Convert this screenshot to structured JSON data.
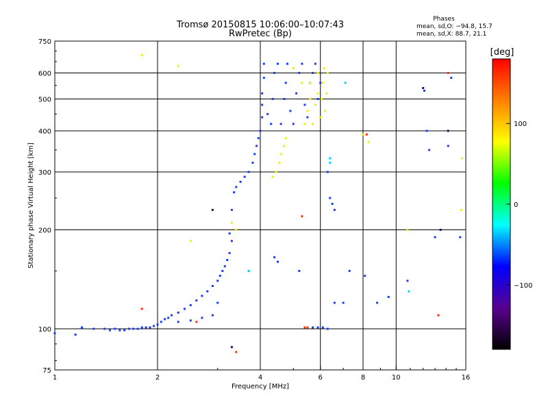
{
  "chart_data": {
    "type": "scatter",
    "title": "Tromsø 20150815 10:06:00–10:07:43",
    "subtitle": "RwPretec (Bp)",
    "xlabel": "Frequency [MHz]",
    "ylabel": "Stationary phase Virtual Height [km]",
    "x_scale": "log",
    "y_scale": "log",
    "xlim": [
      1,
      16
    ],
    "ylim": [
      75,
      750
    ],
    "x_ticks": [
      1,
      2,
      4,
      6,
      8,
      10,
      16
    ],
    "x_tick_labels": [
      "1",
      "2",
      "4",
      "6",
      "8",
      "10",
      "16"
    ],
    "x_grid": [
      1,
      2,
      4,
      6,
      8,
      10,
      16
    ],
    "y_ticks": [
      75,
      100,
      200,
      300,
      400,
      500,
      600,
      750
    ],
    "y_tick_labels": [
      "75",
      "100",
      "200",
      "300",
      "400",
      "500",
      "600",
      "750"
    ],
    "y_grid": [
      100,
      200,
      300,
      400,
      500,
      600
    ],
    "grid": true,
    "phase_stats": {
      "heading": "Phases",
      "line1": "mean, sd,O: −94.8, 15.7",
      "line2": "mean, sd,X:  88.7, 21.1"
    },
    "colorbar": {
      "label": "[deg]",
      "range": [
        -180,
        180
      ],
      "ticks": [
        100,
        0,
        -100
      ],
      "tick_labels": [
        "100",
        "0",
        "−100"
      ],
      "colormap": "rainbow",
      "colors": [
        "#000000",
        "#5a0090",
        "#0000ff",
        "#00ffff",
        "#00ff00",
        "#ffff00",
        "#ff8000",
        "#ff0000"
      ]
    },
    "series": [
      {
        "mode": "O",
        "phase_deg": -95,
        "color": "#1a3cff",
        "points": [
          [
            1.0,
            97
          ],
          [
            1.15,
            96
          ],
          [
            1.2,
            101
          ],
          [
            1.3,
            100
          ],
          [
            1.4,
            100
          ],
          [
            1.45,
            99
          ],
          [
            1.5,
            100
          ],
          [
            1.55,
            99
          ],
          [
            1.6,
            99
          ],
          [
            1.65,
            100
          ],
          [
            1.7,
            100
          ],
          [
            1.75,
            100
          ],
          [
            1.8,
            101
          ],
          [
            1.85,
            101
          ],
          [
            1.9,
            101
          ],
          [
            1.95,
            102
          ],
          [
            2.0,
            103
          ],
          [
            2.05,
            105
          ],
          [
            2.1,
            107
          ],
          [
            2.15,
            108
          ],
          [
            2.2,
            110
          ],
          [
            2.3,
            112
          ],
          [
            2.4,
            115
          ],
          [
            2.5,
            118
          ],
          [
            2.6,
            122
          ],
          [
            2.7,
            126
          ],
          [
            2.8,
            130
          ],
          [
            2.9,
            135
          ],
          [
            3.0,
            140
          ],
          [
            3.05,
            145
          ],
          [
            3.1,
            150
          ],
          [
            3.15,
            155
          ],
          [
            3.2,
            162
          ],
          [
            3.25,
            170
          ],
          [
            3.3,
            185
          ],
          [
            3.25,
            195
          ],
          [
            2.3,
            105
          ],
          [
            2.5,
            106
          ],
          [
            2.7,
            108
          ],
          [
            2.9,
            110
          ],
          [
            3.0,
            120
          ],
          [
            3.3,
            230
          ],
          [
            3.35,
            260
          ],
          [
            3.4,
            270
          ],
          [
            3.5,
            280
          ],
          [
            3.6,
            290
          ],
          [
            3.7,
            300
          ],
          [
            3.8,
            320
          ],
          [
            3.85,
            340
          ],
          [
            3.9,
            360
          ],
          [
            3.95,
            380
          ],
          [
            4.0,
            400
          ],
          [
            4.05,
            440
          ],
          [
            4.05,
            480
          ],
          [
            4.05,
            520
          ],
          [
            4.1,
            580
          ],
          [
            4.1,
            640
          ],
          [
            4.2,
            450
          ],
          [
            4.3,
            420
          ],
          [
            4.35,
            500
          ],
          [
            4.4,
            600
          ],
          [
            4.5,
            640
          ],
          [
            4.6,
            420
          ],
          [
            4.7,
            500
          ],
          [
            4.75,
            560
          ],
          [
            4.8,
            640
          ],
          [
            4.9,
            460
          ],
          [
            5.0,
            420
          ],
          [
            5.1,
            520
          ],
          [
            5.2,
            600
          ],
          [
            5.3,
            640
          ],
          [
            5.4,
            480
          ],
          [
            5.5,
            440
          ],
          [
            5.6,
            560
          ],
          [
            5.7,
            600
          ],
          [
            5.8,
            640
          ],
          [
            5.9,
            500
          ],
          [
            6.0,
            560
          ],
          [
            4.4,
            165
          ],
          [
            4.5,
            160
          ],
          [
            5.2,
            150
          ],
          [
            5.7,
            101
          ],
          [
            5.9,
            101
          ],
          [
            6.1,
            101
          ],
          [
            6.3,
            100
          ],
          [
            6.3,
            300
          ],
          [
            6.4,
            250
          ],
          [
            6.5,
            240
          ],
          [
            6.6,
            230
          ],
          [
            6.6,
            120
          ],
          [
            7.0,
            120
          ],
          [
            7.3,
            150
          ],
          [
            8.1,
            145
          ],
          [
            8.8,
            120
          ],
          [
            9.5,
            125
          ],
          [
            10.8,
            140
          ],
          [
            12.1,
            530
          ],
          [
            12.3,
            400
          ],
          [
            12.5,
            350
          ],
          [
            13.0,
            190
          ],
          [
            14.2,
            360
          ],
          [
            14.5,
            580
          ],
          [
            15.4,
            190
          ]
        ]
      },
      {
        "mode": "X",
        "phase_deg": 89,
        "color": "#f0f000",
        "points": [
          [
            4.35,
            290
          ],
          [
            4.45,
            300
          ],
          [
            4.55,
            320
          ],
          [
            4.6,
            340
          ],
          [
            4.7,
            360
          ],
          [
            4.75,
            380
          ],
          [
            5.4,
            420
          ],
          [
            5.5,
            460
          ],
          [
            5.6,
            500
          ],
          [
            5.6,
            560
          ],
          [
            5.7,
            420
          ],
          [
            5.8,
            480
          ],
          [
            5.9,
            520
          ],
          [
            5.9,
            600
          ],
          [
            6.0,
            440
          ],
          [
            6.05,
            500
          ],
          [
            6.1,
            560
          ],
          [
            6.15,
            620
          ],
          [
            6.2,
            460
          ],
          [
            6.25,
            520
          ],
          [
            6.3,
            600
          ],
          [
            5.0,
            620
          ],
          [
            5.3,
            560
          ],
          [
            1.8,
            680
          ],
          [
            2.3,
            630
          ],
          [
            2.5,
            185
          ],
          [
            3.3,
            210
          ],
          [
            3.4,
            200
          ],
          [
            8.0,
            390
          ],
          [
            8.3,
            370
          ],
          [
            10.8,
            200
          ],
          [
            15.5,
            230
          ],
          [
            15.6,
            330
          ]
        ]
      },
      {
        "mode": "other",
        "phase_deg": 30,
        "color": "#00d0ff",
        "points": [
          [
            6.4,
            330
          ],
          [
            6.4,
            320
          ],
          [
            7.1,
            560
          ],
          [
            3.7,
            150
          ],
          [
            10.9,
            130
          ]
        ]
      },
      {
        "mode": "other",
        "phase_deg": 160,
        "color": "#ff3000",
        "points": [
          [
            5.3,
            220
          ],
          [
            5.4,
            101
          ],
          [
            5.5,
            101
          ],
          [
            2.6,
            105
          ],
          [
            14.2,
            600
          ],
          [
            13.3,
            110
          ],
          [
            3.4,
            85
          ],
          [
            8.2,
            390
          ],
          [
            1.8,
            115
          ]
        ]
      },
      {
        "mode": "other",
        "phase_deg": -150,
        "color": "#400070",
        "points": [
          [
            2.9,
            230
          ],
          [
            12.0,
            540
          ],
          [
            13.5,
            200
          ],
          [
            14.2,
            400
          ],
          [
            3.3,
            88
          ]
        ]
      }
    ]
  }
}
